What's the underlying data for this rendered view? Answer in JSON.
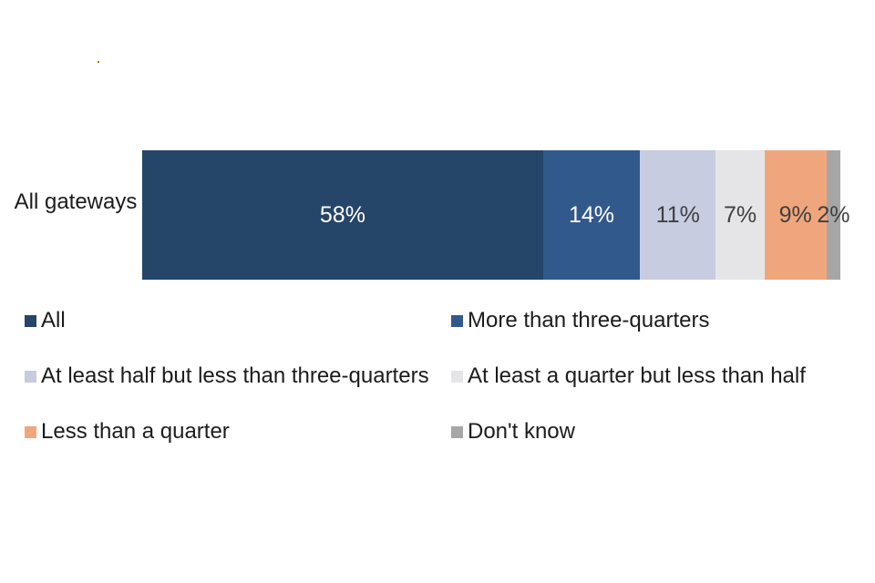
{
  "page": {
    "background": "#ffffff",
    "artifact_dot_color": "#B5790F"
  },
  "chart_data": {
    "type": "bar",
    "orientation": "horizontal_stacked",
    "title": "",
    "categories": [
      "All gateways"
    ],
    "series": [
      {
        "name": "All",
        "values": [
          58
        ],
        "data_label": "58%",
        "color": "#254569",
        "label_color": "#FFFFFF"
      },
      {
        "name": "More than three-quarters",
        "values": [
          14
        ],
        "data_label": "14%",
        "color": "#32598C",
        "label_color": "#FFFFFF"
      },
      {
        "name": "At least half but less than three-quarters",
        "values": [
          11
        ],
        "data_label": "11%",
        "color": "#C7CCE0",
        "label_color": "#404040"
      },
      {
        "name": "At least a quarter but less than half",
        "values": [
          7
        ],
        "data_label": "7%",
        "color": "#E5E5E7",
        "label_color": "#404040"
      },
      {
        "name": "Less than a quarter",
        "values": [
          9
        ],
        "data_label": "9%",
        "color": "#F0A67D",
        "label_color": "#404040"
      },
      {
        "name": "Don't know",
        "values": [
          2
        ],
        "data_label": "2%",
        "color": "#A6A6A6",
        "label_color": "#404040"
      }
    ],
    "axis": {
      "visible": false
    },
    "grid": false,
    "legend_position": "bottom",
    "legend_columns": 2,
    "legend_row_order": [
      [
        "All",
        "More than three-quarters"
      ],
      [
        "At least half but less than three-quarters",
        "At least a quarter but less than half"
      ],
      [
        "Less than a quarter",
        "Don't know"
      ]
    ]
  }
}
